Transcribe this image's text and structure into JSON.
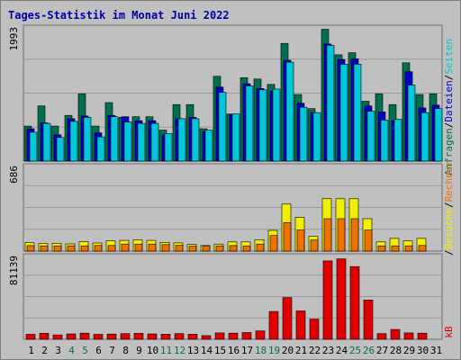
{
  "title": "Tages-Statistik im Monat Juni 2022",
  "colors": {
    "background": "#c0c0c0",
    "plot_area": "#c0c0c0",
    "grid": "#999999",
    "title": "#0000aa",
    "anfragen": "#007050",
    "dateien": "#0000cc",
    "seiten": "#00c8d8",
    "besuche": "#f0f000",
    "rechner": "#f07000",
    "kb": "#e00000",
    "weekend_tick": "#007050",
    "weekday_tick": "#000000"
  },
  "legend": {
    "anfragen": "Anfragen",
    "sep1": "/",
    "dateien": "Dateien",
    "sep2": "/",
    "seiten": "Seiten",
    "sep3": "/",
    "besuche": "Besuche",
    "sep4": "/",
    "rechner": "Rechner",
    "sep5": "/",
    "kb": "kB"
  },
  "chart_data": [
    {
      "type": "bar",
      "panel": "requests",
      "ymax_label": "1993",
      "ylim": [
        0,
        1993
      ],
      "categories": [
        "1",
        "2",
        "3",
        "4",
        "5",
        "6",
        "7",
        "8",
        "9",
        "10",
        "11",
        "12",
        "13",
        "14",
        "15",
        "16",
        "17",
        "18",
        "19",
        "20",
        "21",
        "22",
        "23",
        "24",
        "25",
        "26",
        "27",
        "28",
        "29",
        "30",
        "31"
      ],
      "weekend_days": [
        4,
        5,
        11,
        12,
        18,
        19,
        25,
        26
      ],
      "series": [
        {
          "name": "Anfragen",
          "values": [
            520,
            820,
            520,
            680,
            1000,
            520,
            870,
            650,
            660,
            660,
            460,
            840,
            840,
            480,
            1260,
            700,
            1240,
            1220,
            1140,
            1750,
            990,
            780,
            1960,
            1580,
            1610,
            890,
            1000,
            840,
            1460,
            990,
            1000
          ]
        },
        {
          "name": "Dateien",
          "values": [
            480,
            570,
            390,
            630,
            670,
            420,
            680,
            660,
            600,
            600,
            390,
            630,
            650,
            440,
            1100,
            690,
            1150,
            1080,
            1040,
            1500,
            860,
            720,
            1740,
            1510,
            1520,
            820,
            730,
            600,
            1330,
            790,
            830
          ]
        },
        {
          "name": "Seiten",
          "values": [
            430,
            560,
            350,
            590,
            650,
            360,
            660,
            580,
            560,
            560,
            410,
            630,
            630,
            460,
            1020,
            700,
            1120,
            1060,
            1070,
            1470,
            800,
            720,
            1720,
            1440,
            1440,
            740,
            610,
            620,
            1130,
            720,
            780
          ]
        }
      ]
    },
    {
      "type": "bar",
      "panel": "visits",
      "ymax_label": "686",
      "ylim": [
        0,
        686
      ],
      "categories": [
        "1",
        "2",
        "3",
        "4",
        "5",
        "6",
        "7",
        "8",
        "9",
        "10",
        "11",
        "12",
        "13",
        "14",
        "15",
        "16",
        "17",
        "18",
        "19",
        "20",
        "21",
        "22",
        "23",
        "24",
        "25",
        "26",
        "27",
        "28",
        "29",
        "30",
        "31"
      ],
      "series": [
        {
          "name": "Besuche",
          "values": [
            68,
            62,
            62,
            58,
            76,
            65,
            82,
            86,
            90,
            86,
            70,
            66,
            54,
            45,
            56,
            74,
            74,
            90,
            166,
            377,
            271,
            120,
            420,
            420,
            420,
            260,
            74,
            102,
            82,
            102,
            0
          ]
        },
        {
          "name": "Rechner",
          "values": [
            44,
            42,
            42,
            42,
            42,
            45,
            45,
            56,
            56,
            56,
            52,
            46,
            40,
            38,
            42,
            44,
            42,
            56,
            125,
            229,
            170,
            89,
            260,
            260,
            260,
            169,
            42,
            42,
            42,
            45,
            0
          ]
        }
      ]
    },
    {
      "type": "bar",
      "panel": "kb",
      "ymax_label": "81139",
      "ylim": [
        0,
        81139
      ],
      "categories": [
        "1",
        "2",
        "3",
        "4",
        "5",
        "6",
        "7",
        "8",
        "9",
        "10",
        "11",
        "12",
        "13",
        "14",
        "15",
        "16",
        "17",
        "18",
        "19",
        "20",
        "21",
        "22",
        "23",
        "24",
        "25",
        "26",
        "27",
        "28",
        "29",
        "30",
        "31"
      ],
      "series": [
        {
          "name": "kB",
          "values": [
            4800,
            5800,
            4300,
            5200,
            5900,
            4800,
            5100,
            5500,
            5800,
            5200,
            4900,
            5500,
            4900,
            3600,
            6200,
            5900,
            6500,
            8100,
            27000,
            40500,
            27500,
            19500,
            76000,
            78000,
            70500,
            38000,
            5500,
            9500,
            6200,
            5900,
            0
          ]
        }
      ]
    }
  ]
}
